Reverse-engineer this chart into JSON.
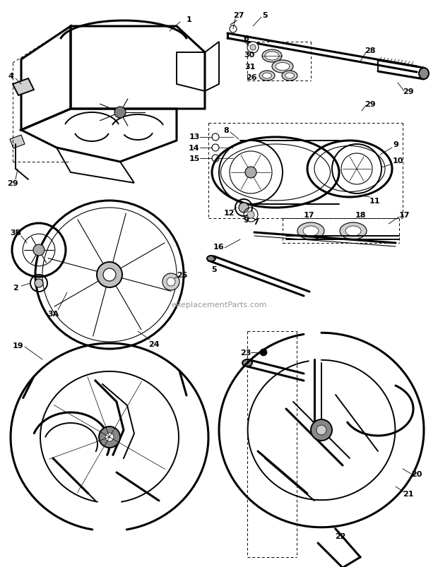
{
  "bg_color": "#ffffff",
  "line_color": "#000000",
  "watermark": "eReplacementParts.com",
  "lw_thick": 2.2,
  "lw_med": 1.4,
  "lw_thin": 0.8,
  "lw_vthin": 0.5,
  "fig_w": 6.2,
  "fig_h": 8.04,
  "dpi": 100
}
